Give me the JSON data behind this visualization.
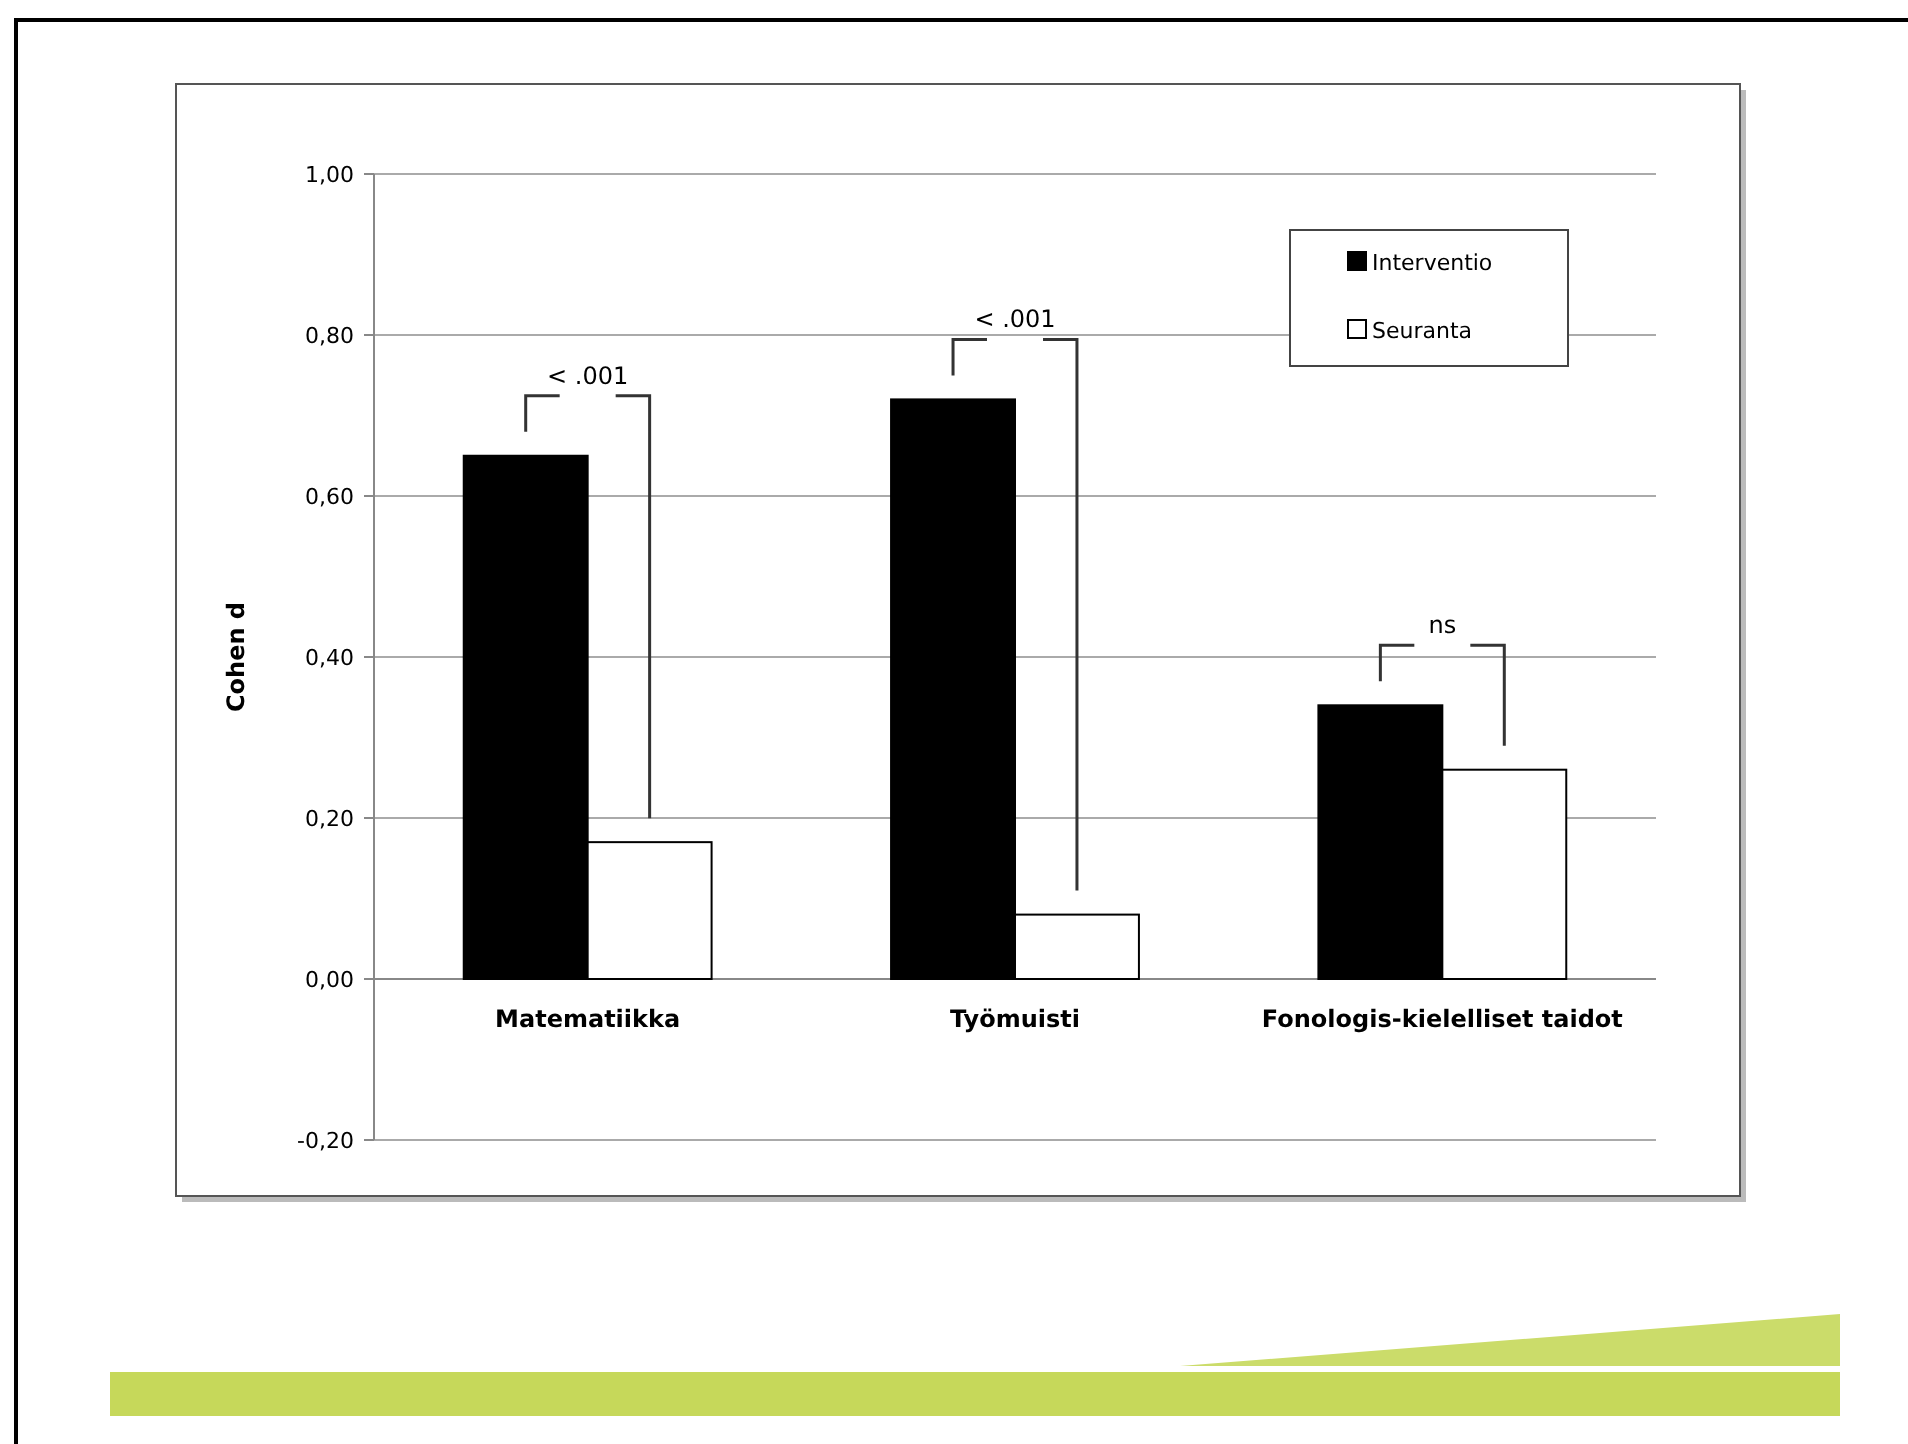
{
  "chart_data": {
    "type": "bar",
    "ylabel": "Cohen d",
    "categories": [
      "Matematiikka",
      "Työmuisti",
      "Fonologis-kielelliset taidot"
    ],
    "series": [
      {
        "name": "Interventio",
        "color": "#000000",
        "values": [
          0.65,
          0.72,
          0.34
        ]
      },
      {
        "name": "Seuranta",
        "color": "#ffffff",
        "values": [
          0.17,
          0.08,
          0.26
        ]
      }
    ],
    "ylim": [
      -0.2,
      1.0
    ],
    "yticks": [
      {
        "value": -0.2,
        "label": "-0,20"
      },
      {
        "value": 0,
        "label": "0,00"
      },
      {
        "value": 0.2,
        "label": "0,20"
      },
      {
        "value": 0.4,
        "label": "0,40"
      },
      {
        "value": 0.6,
        "label": "0,60"
      },
      {
        "value": 0.8,
        "label": "0,80"
      },
      {
        "value": 1.0,
        "label": "1,00"
      }
    ],
    "grid": "y",
    "legend": "top right",
    "annotations": [
      "< .001",
      "< .001",
      "ns"
    ]
  }
}
